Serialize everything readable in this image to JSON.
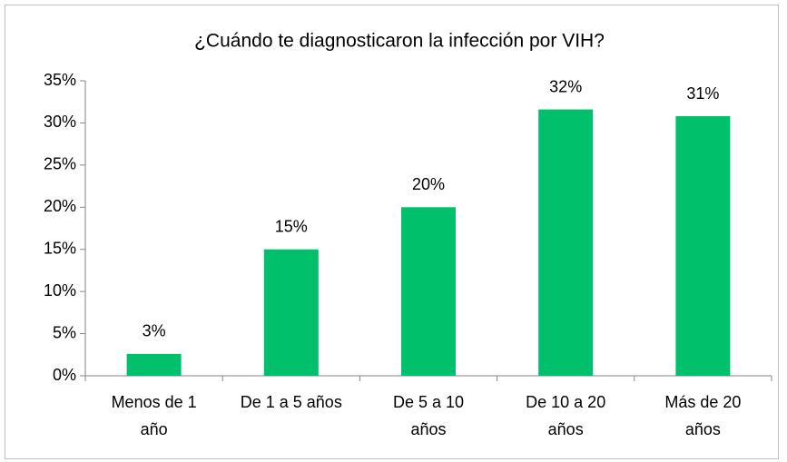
{
  "chart_data": {
    "type": "bar",
    "title": "¿Cuándo te diagnosticaron la infección por VIH?",
    "categories": [
      "Menos de 1\naño",
      "De 1 a 5 años",
      "De 5 a 10\naños",
      "De 10 a 20\naños",
      "Más de 20\naños"
    ],
    "values": [
      2.6,
      15,
      20,
      31.6,
      30.8
    ],
    "value_labels": [
      "3%",
      "15%",
      "20%",
      "32%",
      "31%"
    ],
    "color": "#00c06b",
    "ylim": [
      0,
      35
    ],
    "yticks": [
      {
        "value": 0,
        "label": "0%"
      },
      {
        "value": 5,
        "label": "5%"
      },
      {
        "value": 10,
        "label": "10%"
      },
      {
        "value": 15,
        "label": "15%"
      },
      {
        "value": 20,
        "label": "20%"
      },
      {
        "value": 25,
        "label": "25%"
      },
      {
        "value": 30,
        "label": "30%"
      },
      {
        "value": 35,
        "label": "35%"
      }
    ],
    "grid": false
  }
}
